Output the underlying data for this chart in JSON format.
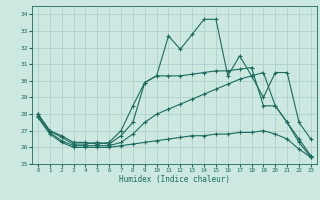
{
  "title": "",
  "xlabel": "Humidex (Indice chaleur)",
  "xlim": [
    -0.5,
    23.5
  ],
  "ylim": [
    25,
    34.5
  ],
  "yticks": [
    25,
    26,
    27,
    28,
    29,
    30,
    31,
    32,
    33,
    34
  ],
  "xticks": [
    0,
    1,
    2,
    3,
    4,
    5,
    6,
    7,
    8,
    9,
    10,
    11,
    12,
    13,
    14,
    15,
    16,
    17,
    18,
    19,
    20,
    21,
    22,
    23
  ],
  "bg_color": "#cce8e0",
  "grid_color": "#aacccc",
  "line_color": "#1a6b5e",
  "line1": [
    28,
    27,
    26.6,
    26.2,
    26.2,
    26.3,
    26.2,
    26.7,
    27.5,
    29.9,
    30.3,
    32.7,
    31.9,
    32.8,
    33.7,
    33.7,
    30.3,
    31.5,
    30.3,
    29.0,
    30.5,
    30.5,
    27.5,
    26.5
  ],
  "line2": [
    28,
    27,
    26.7,
    26.3,
    26.3,
    26.2,
    26.3,
    27.0,
    28.5,
    29.9,
    30.3,
    30.3,
    30.3,
    30.4,
    30.5,
    30.6,
    30.6,
    30.7,
    30.8,
    28.5,
    28.5,
    27.5,
    26.5,
    25.5
  ],
  "line3": [
    27.9,
    26.9,
    26.4,
    26.1,
    26.1,
    26.1,
    26.1,
    26.3,
    26.8,
    27.5,
    28.0,
    28.3,
    28.6,
    28.9,
    29.2,
    29.5,
    29.8,
    30.1,
    30.3,
    30.5,
    28.5,
    27.5,
    26.3,
    25.4
  ],
  "line4": [
    27.8,
    26.8,
    26.3,
    26.0,
    26.0,
    26.0,
    26.0,
    26.1,
    26.2,
    26.3,
    26.4,
    26.5,
    26.6,
    26.7,
    26.7,
    26.8,
    26.8,
    26.9,
    26.9,
    27.0,
    26.8,
    26.5,
    25.9,
    25.4
  ]
}
